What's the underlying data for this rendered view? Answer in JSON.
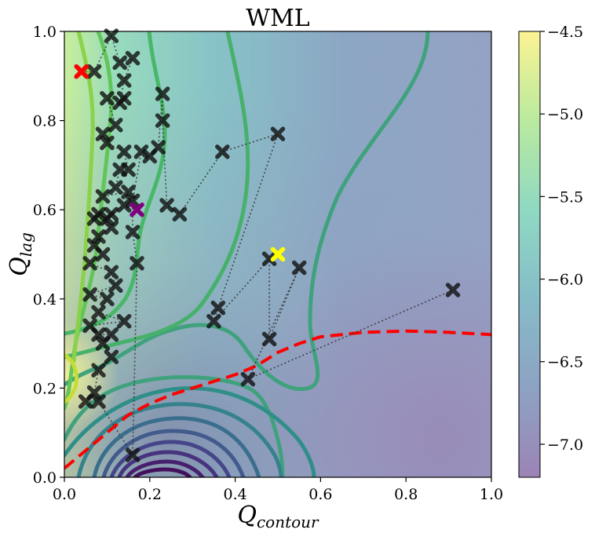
{
  "chart_data": {
    "type": "scatter",
    "subtype": "contour-heatmap-with-optimization-path",
    "title": "WML",
    "xlabel": "Q",
    "xlabel_sub": "contour",
    "ylabel": "Q",
    "ylabel_sub": "lag",
    "xlim": [
      0.0,
      1.0
    ],
    "ylim": [
      0.0,
      1.0
    ],
    "x_ticks": [
      0.0,
      0.2,
      0.4,
      0.6,
      0.8,
      1.0
    ],
    "x_tick_labels": [
      "0.0",
      "0.2",
      "0.4",
      "0.6",
      "0.8",
      "1.0"
    ],
    "y_ticks": [
      0.0,
      0.2,
      0.4,
      0.6,
      0.8,
      1.0
    ],
    "y_tick_labels": [
      "0.0",
      "0.2",
      "0.4",
      "0.6",
      "0.8",
      "1.0"
    ],
    "colorbar": {
      "range": [
        -7.2,
        -4.5
      ],
      "ticks": [
        -4.5,
        -5.0,
        -5.5,
        -6.0,
        -6.5,
        -7.0
      ],
      "tick_labels": [
        "−4.5",
        "−5.0",
        "−5.5",
        "−6.0",
        "−6.5",
        "−7.0"
      ],
      "colors": [
        "#9c84b6",
        "#8da2c3",
        "#86bcc8",
        "#8fd9c2",
        "#b9ea9f",
        "#fbf393"
      ]
    },
    "red_dashed_boundary": [
      [
        0.0,
        0.02
      ],
      [
        0.05,
        0.06
      ],
      [
        0.1,
        0.1
      ],
      [
        0.15,
        0.14
      ],
      [
        0.2,
        0.165
      ],
      [
        0.25,
        0.185
      ],
      [
        0.3,
        0.2
      ],
      [
        0.35,
        0.215
      ],
      [
        0.4,
        0.23
      ],
      [
        0.45,
        0.25
      ],
      [
        0.5,
        0.28
      ],
      [
        0.55,
        0.3
      ],
      [
        0.6,
        0.315
      ],
      [
        0.7,
        0.325
      ],
      [
        0.8,
        0.328
      ],
      [
        0.9,
        0.325
      ],
      [
        1.0,
        0.32
      ]
    ],
    "path_points": [
      [
        0.04,
        0.91
      ],
      [
        0.07,
        0.91
      ],
      [
        0.11,
        0.99
      ],
      [
        0.13,
        0.93
      ],
      [
        0.16,
        0.94
      ],
      [
        0.14,
        0.89
      ],
      [
        0.13,
        0.84
      ],
      [
        0.14,
        0.85
      ],
      [
        0.1,
        0.85
      ],
      [
        0.12,
        0.79
      ],
      [
        0.09,
        0.77
      ],
      [
        0.1,
        0.75
      ],
      [
        0.14,
        0.73
      ],
      [
        0.15,
        0.69
      ],
      [
        0.13,
        0.69
      ],
      [
        0.12,
        0.65
      ],
      [
        0.09,
        0.63
      ],
      [
        0.15,
        0.64
      ],
      [
        0.14,
        0.61
      ],
      [
        0.11,
        0.59
      ],
      [
        0.1,
        0.58
      ],
      [
        0.08,
        0.59
      ],
      [
        0.07,
        0.58
      ],
      [
        0.11,
        0.56
      ],
      [
        0.08,
        0.54
      ],
      [
        0.07,
        0.52
      ],
      [
        0.09,
        0.5
      ],
      [
        0.06,
        0.48
      ],
      [
        0.11,
        0.46
      ],
      [
        0.12,
        0.43
      ],
      [
        0.06,
        0.41
      ],
      [
        0.1,
        0.4
      ],
      [
        0.08,
        0.37
      ],
      [
        0.14,
        0.35
      ],
      [
        0.06,
        0.34
      ],
      [
        0.08,
        0.32
      ],
      [
        0.11,
        0.32
      ],
      [
        0.09,
        0.3
      ],
      [
        0.11,
        0.27
      ],
      [
        0.08,
        0.24
      ],
      [
        0.07,
        0.19
      ],
      [
        0.05,
        0.17
      ],
      [
        0.08,
        0.17
      ],
      [
        0.16,
        0.05
      ],
      [
        0.17,
        0.48
      ],
      [
        0.16,
        0.55
      ],
      [
        0.16,
        0.62
      ],
      [
        0.18,
        0.73
      ],
      [
        0.2,
        0.72
      ],
      [
        0.22,
        0.74
      ],
      [
        0.23,
        0.86
      ],
      [
        0.23,
        0.8
      ],
      [
        0.24,
        0.61
      ],
      [
        0.27,
        0.59
      ],
      [
        0.37,
        0.73
      ],
      [
        0.5,
        0.77
      ],
      [
        0.36,
        0.38
      ],
      [
        0.35,
        0.35
      ],
      [
        0.48,
        0.49
      ],
      [
        0.48,
        0.31
      ],
      [
        0.55,
        0.47
      ],
      [
        0.43,
        0.22
      ],
      [
        0.91,
        0.42
      ]
    ],
    "start_point": {
      "x": 0.04,
      "y": 0.91,
      "color": "#ff0000"
    },
    "best_point": {
      "x": 0.17,
      "y": 0.6,
      "color": "#800080"
    },
    "default_point": {
      "x": 0.5,
      "y": 0.5,
      "color": "#ffff00"
    }
  }
}
